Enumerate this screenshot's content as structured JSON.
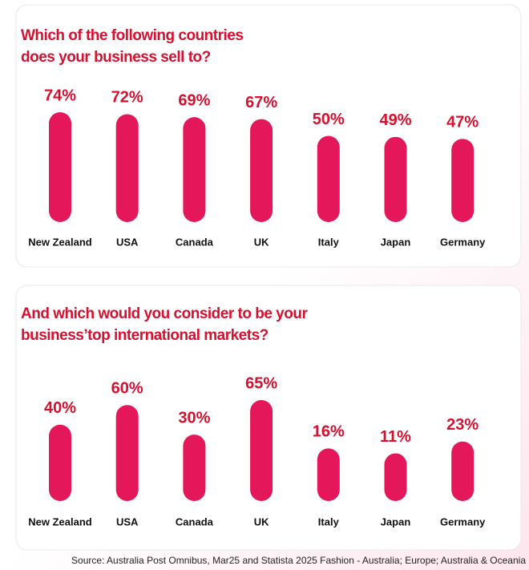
{
  "chart_data": [
    {
      "type": "bar",
      "title": [
        "Which of the following countries",
        "does your business sell to?"
      ],
      "categories": [
        "New Zealand",
        "USA",
        "Canada",
        "UK",
        "Italy",
        "Japan",
        "Germany"
      ],
      "values": [
        74,
        72,
        69,
        67,
        50,
        49,
        47
      ],
      "value_labels": [
        "74%",
        "72%",
        "69%",
        "67%",
        "50%",
        "49%",
        "47%"
      ],
      "color": "#e3175a"
    },
    {
      "type": "bar",
      "title": [
        "And which would you consider to be your",
        "business’top international markets?"
      ],
      "categories": [
        "New Zealand",
        "USA",
        "Canada",
        "UK",
        "Italy",
        "Japan",
        "Germany"
      ],
      "values": [
        40,
        60,
        30,
        65,
        16,
        11,
        23
      ],
      "value_labels": [
        "40%",
        "60%",
        "30%",
        "65%",
        "16%",
        "11%",
        "23%"
      ],
      "color": "#e3175a"
    }
  ],
  "source": "Source: Australia Post Omnibus, Mar25 and Statista 2025 Fashion - Australia; Europe; Australia & Oceania"
}
